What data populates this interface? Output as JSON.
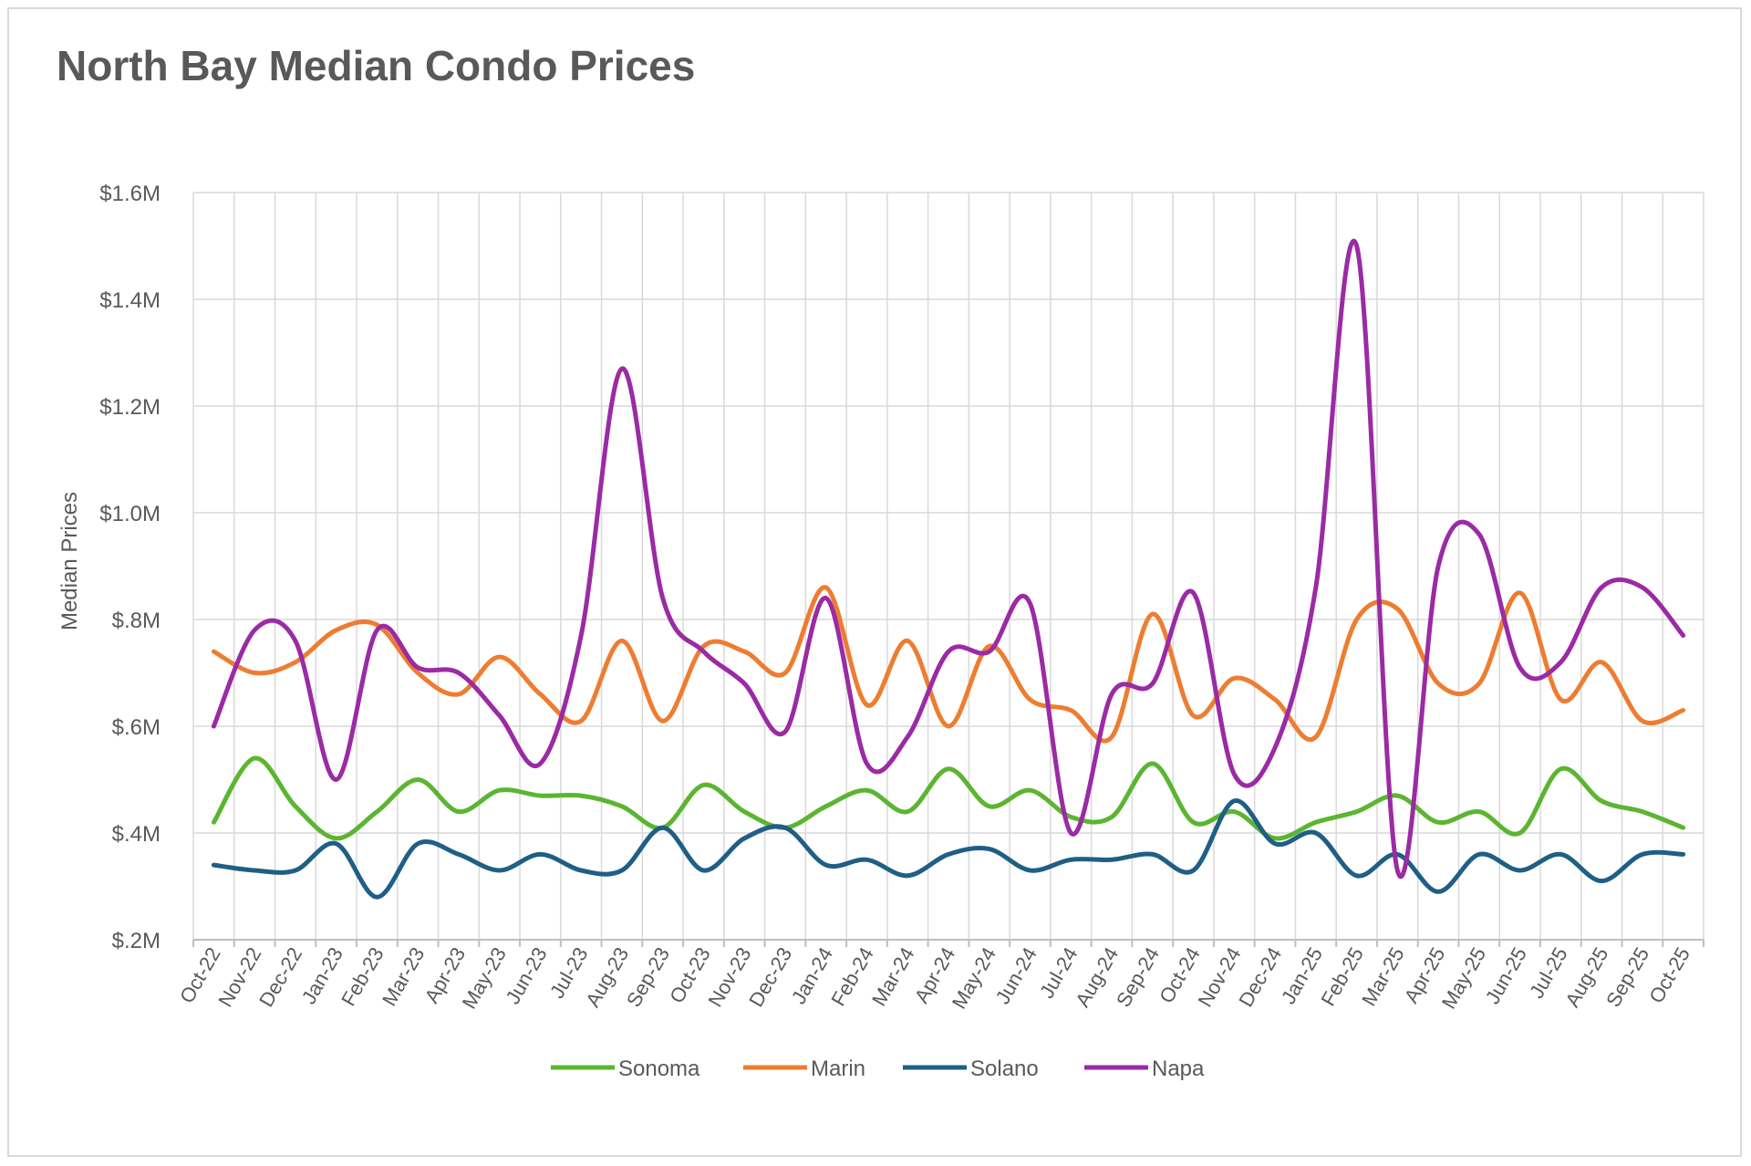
{
  "chart_data": {
    "type": "line",
    "title": "North Bay Median Condo Prices",
    "xlabel": "",
    "ylabel": "Median Prices",
    "ylim": [
      0.2,
      1.6
    ],
    "yticks": [
      0.2,
      0.4,
      0.6,
      0.8,
      1.0,
      1.2,
      1.4,
      1.6
    ],
    "ytick_labels": [
      "$.2M",
      "$.4M",
      "$.6M",
      "$.8M",
      "$1.0M",
      "$1.2M",
      "$1.4M",
      "$1.6M"
    ],
    "grid": true,
    "legend_position": "bottom",
    "categories": [
      "Oct-22",
      "Nov-22",
      "Dec-22",
      "Jan-23",
      "Feb-23",
      "Mar-23",
      "Apr-23",
      "May-23",
      "Jun-23",
      "Jul-23",
      "Aug-23",
      "Sep-23",
      "Oct-23",
      "Nov-23",
      "Dec-23",
      "Jan-24",
      "Feb-24",
      "Mar-24",
      "Apr-24",
      "May-24",
      "Jun-24",
      "Jul-24",
      "Aug-24",
      "Sep-24",
      "Oct-24",
      "Nov-24",
      "Dec-24",
      "Jan-25",
      "Feb-25",
      "Mar-25",
      "Apr-25",
      "May-25",
      "Jun-25",
      "Jul-25",
      "Aug-25",
      "Sep-25",
      "Oct-25"
    ],
    "series": [
      {
        "name": "Sonoma",
        "color": "#5cb531",
        "values": [
          0.42,
          0.54,
          0.45,
          0.39,
          0.44,
          0.5,
          0.44,
          0.48,
          0.47,
          0.47,
          0.45,
          0.41,
          0.49,
          0.44,
          0.41,
          0.45,
          0.48,
          0.44,
          0.52,
          0.45,
          0.48,
          0.43,
          0.43,
          0.53,
          0.42,
          0.44,
          0.39,
          0.42,
          0.44,
          0.47,
          0.42,
          0.44,
          0.4,
          0.52,
          0.46,
          0.44,
          0.41
        ]
      },
      {
        "name": "Marin",
        "color": "#ed7d31",
        "values": [
          0.74,
          0.7,
          0.72,
          0.78,
          0.79,
          0.7,
          0.66,
          0.73,
          0.66,
          0.61,
          0.76,
          0.61,
          0.75,
          0.74,
          0.7,
          0.86,
          0.64,
          0.76,
          0.6,
          0.75,
          0.65,
          0.63,
          0.58,
          0.81,
          0.62,
          0.69,
          0.65,
          0.58,
          0.8,
          0.82,
          0.68,
          0.68,
          0.85,
          0.65,
          0.72,
          0.61,
          0.63
        ]
      },
      {
        "name": "Solano",
        "color": "#1f5f85",
        "values": [
          0.34,
          0.33,
          0.33,
          0.38,
          0.28,
          0.38,
          0.36,
          0.33,
          0.36,
          0.33,
          0.33,
          0.41,
          0.33,
          0.39,
          0.41,
          0.34,
          0.35,
          0.32,
          0.36,
          0.37,
          0.33,
          0.35,
          0.35,
          0.36,
          0.33,
          0.46,
          0.38,
          0.4,
          0.32,
          0.36,
          0.29,
          0.36,
          0.33,
          0.36,
          0.31,
          0.36,
          0.36
        ]
      },
      {
        "name": "Napa",
        "color": "#9b2aa5",
        "values": [
          0.6,
          0.78,
          0.76,
          0.5,
          0.78,
          0.71,
          0.7,
          0.62,
          0.53,
          0.77,
          1.27,
          0.84,
          0.74,
          0.68,
          0.59,
          0.84,
          0.53,
          0.58,
          0.74,
          0.74,
          0.83,
          0.4,
          0.66,
          0.68,
          0.85,
          0.51,
          0.56,
          0.86,
          1.5,
          0.33,
          0.9,
          0.96,
          0.71,
          0.72,
          0.86,
          0.86,
          0.77
        ]
      }
    ]
  }
}
